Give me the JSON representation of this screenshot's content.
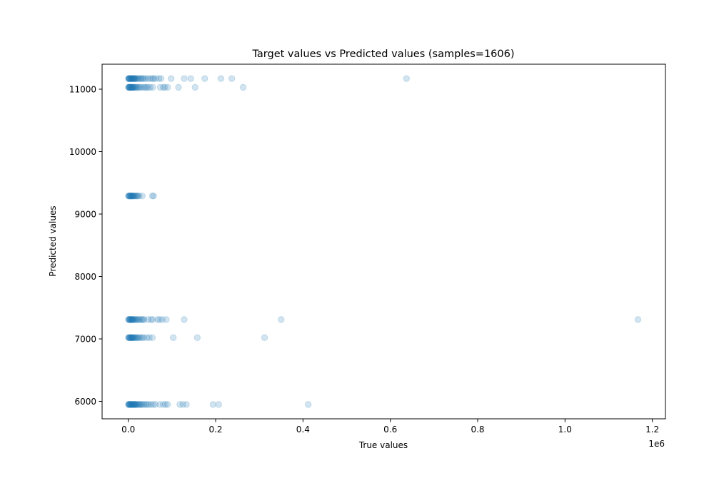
{
  "chart_data": {
    "type": "scatter",
    "title": "Target values vs Predicted values (samples=1606)",
    "xlabel": "True values",
    "ylabel": "Predicted values",
    "x_offset_label": "1e6",
    "xlim": [
      -60000,
      1230000
    ],
    "ylim": [
      5720,
      11400
    ],
    "x_ticks": [
      0,
      200000,
      400000,
      600000,
      800000,
      1000000,
      1200000
    ],
    "x_tick_labels": [
      "0.0",
      "0.2",
      "0.4",
      "0.6",
      "0.8",
      "1.0",
      "1.2"
    ],
    "y_ticks": [
      6000,
      7000,
      8000,
      9000,
      10000,
      11000
    ],
    "y_tick_labels": [
      "6000",
      "7000",
      "8000",
      "9000",
      "10000",
      "11000"
    ],
    "grid": false,
    "marker_color": "#1f77b4",
    "marker_alpha": 0.2,
    "levels": [
      {
        "y": 11170,
        "x": [
          500,
          1000,
          1500,
          2000,
          3000,
          4000,
          5000,
          6000,
          7000,
          8000,
          9000,
          10000,
          11000,
          12000,
          13000,
          14000,
          15000,
          16000,
          18000,
          20000,
          22000,
          25000,
          28000,
          30000,
          33000,
          36000,
          40000,
          45000,
          50000,
          55000,
          58000,
          62000,
          70000,
          75000,
          98000,
          128000,
          143000,
          175000,
          212000,
          237000,
          637000
        ]
      },
      {
        "y": 11030,
        "x": [
          500,
          1000,
          1500,
          2000,
          3000,
          4000,
          5000,
          6000,
          7000,
          8000,
          9000,
          10000,
          11000,
          12000,
          13000,
          15000,
          17000,
          19000,
          21000,
          24000,
          27000,
          30000,
          35000,
          38000,
          42000,
          45000,
          50000,
          56000,
          73000,
          80000,
          84000,
          90000,
          115000,
          153000,
          263000
        ]
      },
      {
        "y": 9290,
        "x": [
          500,
          1000,
          2000,
          3000,
          4000,
          5000,
          6000,
          7000,
          8000,
          9000,
          10000,
          11000,
          12000,
          14000,
          16000,
          18000,
          20000,
          22000,
          25000,
          32000,
          55000,
          58000
        ]
      },
      {
        "y": 7310,
        "x": [
          500,
          1000,
          2000,
          3000,
          4000,
          5000,
          6000,
          7000,
          8000,
          9000,
          10000,
          11000,
          12000,
          14000,
          16000,
          18000,
          20000,
          22000,
          25000,
          28000,
          31000,
          34000,
          36000,
          45000,
          52000,
          56000,
          67000,
          72000,
          78000,
          87000,
          128000,
          350000,
          1167000
        ]
      },
      {
        "y": 7020,
        "x": [
          500,
          1000,
          2000,
          3000,
          4000,
          5000,
          6000,
          7000,
          8000,
          9000,
          10000,
          11000,
          12000,
          14000,
          16000,
          18000,
          20000,
          22000,
          25000,
          28000,
          32000,
          35000,
          42000,
          48000,
          55000,
          103000,
          158000,
          312000
        ]
      },
      {
        "y": 5950,
        "x": [
          500,
          1000,
          1500,
          2000,
          3000,
          4000,
          5000,
          6000,
          7000,
          8000,
          9000,
          10000,
          11000,
          12000,
          13000,
          14000,
          15000,
          16000,
          17000,
          18000,
          20000,
          22000,
          24000,
          26000,
          28000,
          30000,
          33000,
          36000,
          40000,
          43000,
          47000,
          52000,
          57000,
          62000,
          72000,
          80000,
          85000,
          90000,
          118000,
          125000,
          133000,
          194000,
          207000,
          412000
        ]
      }
    ]
  }
}
